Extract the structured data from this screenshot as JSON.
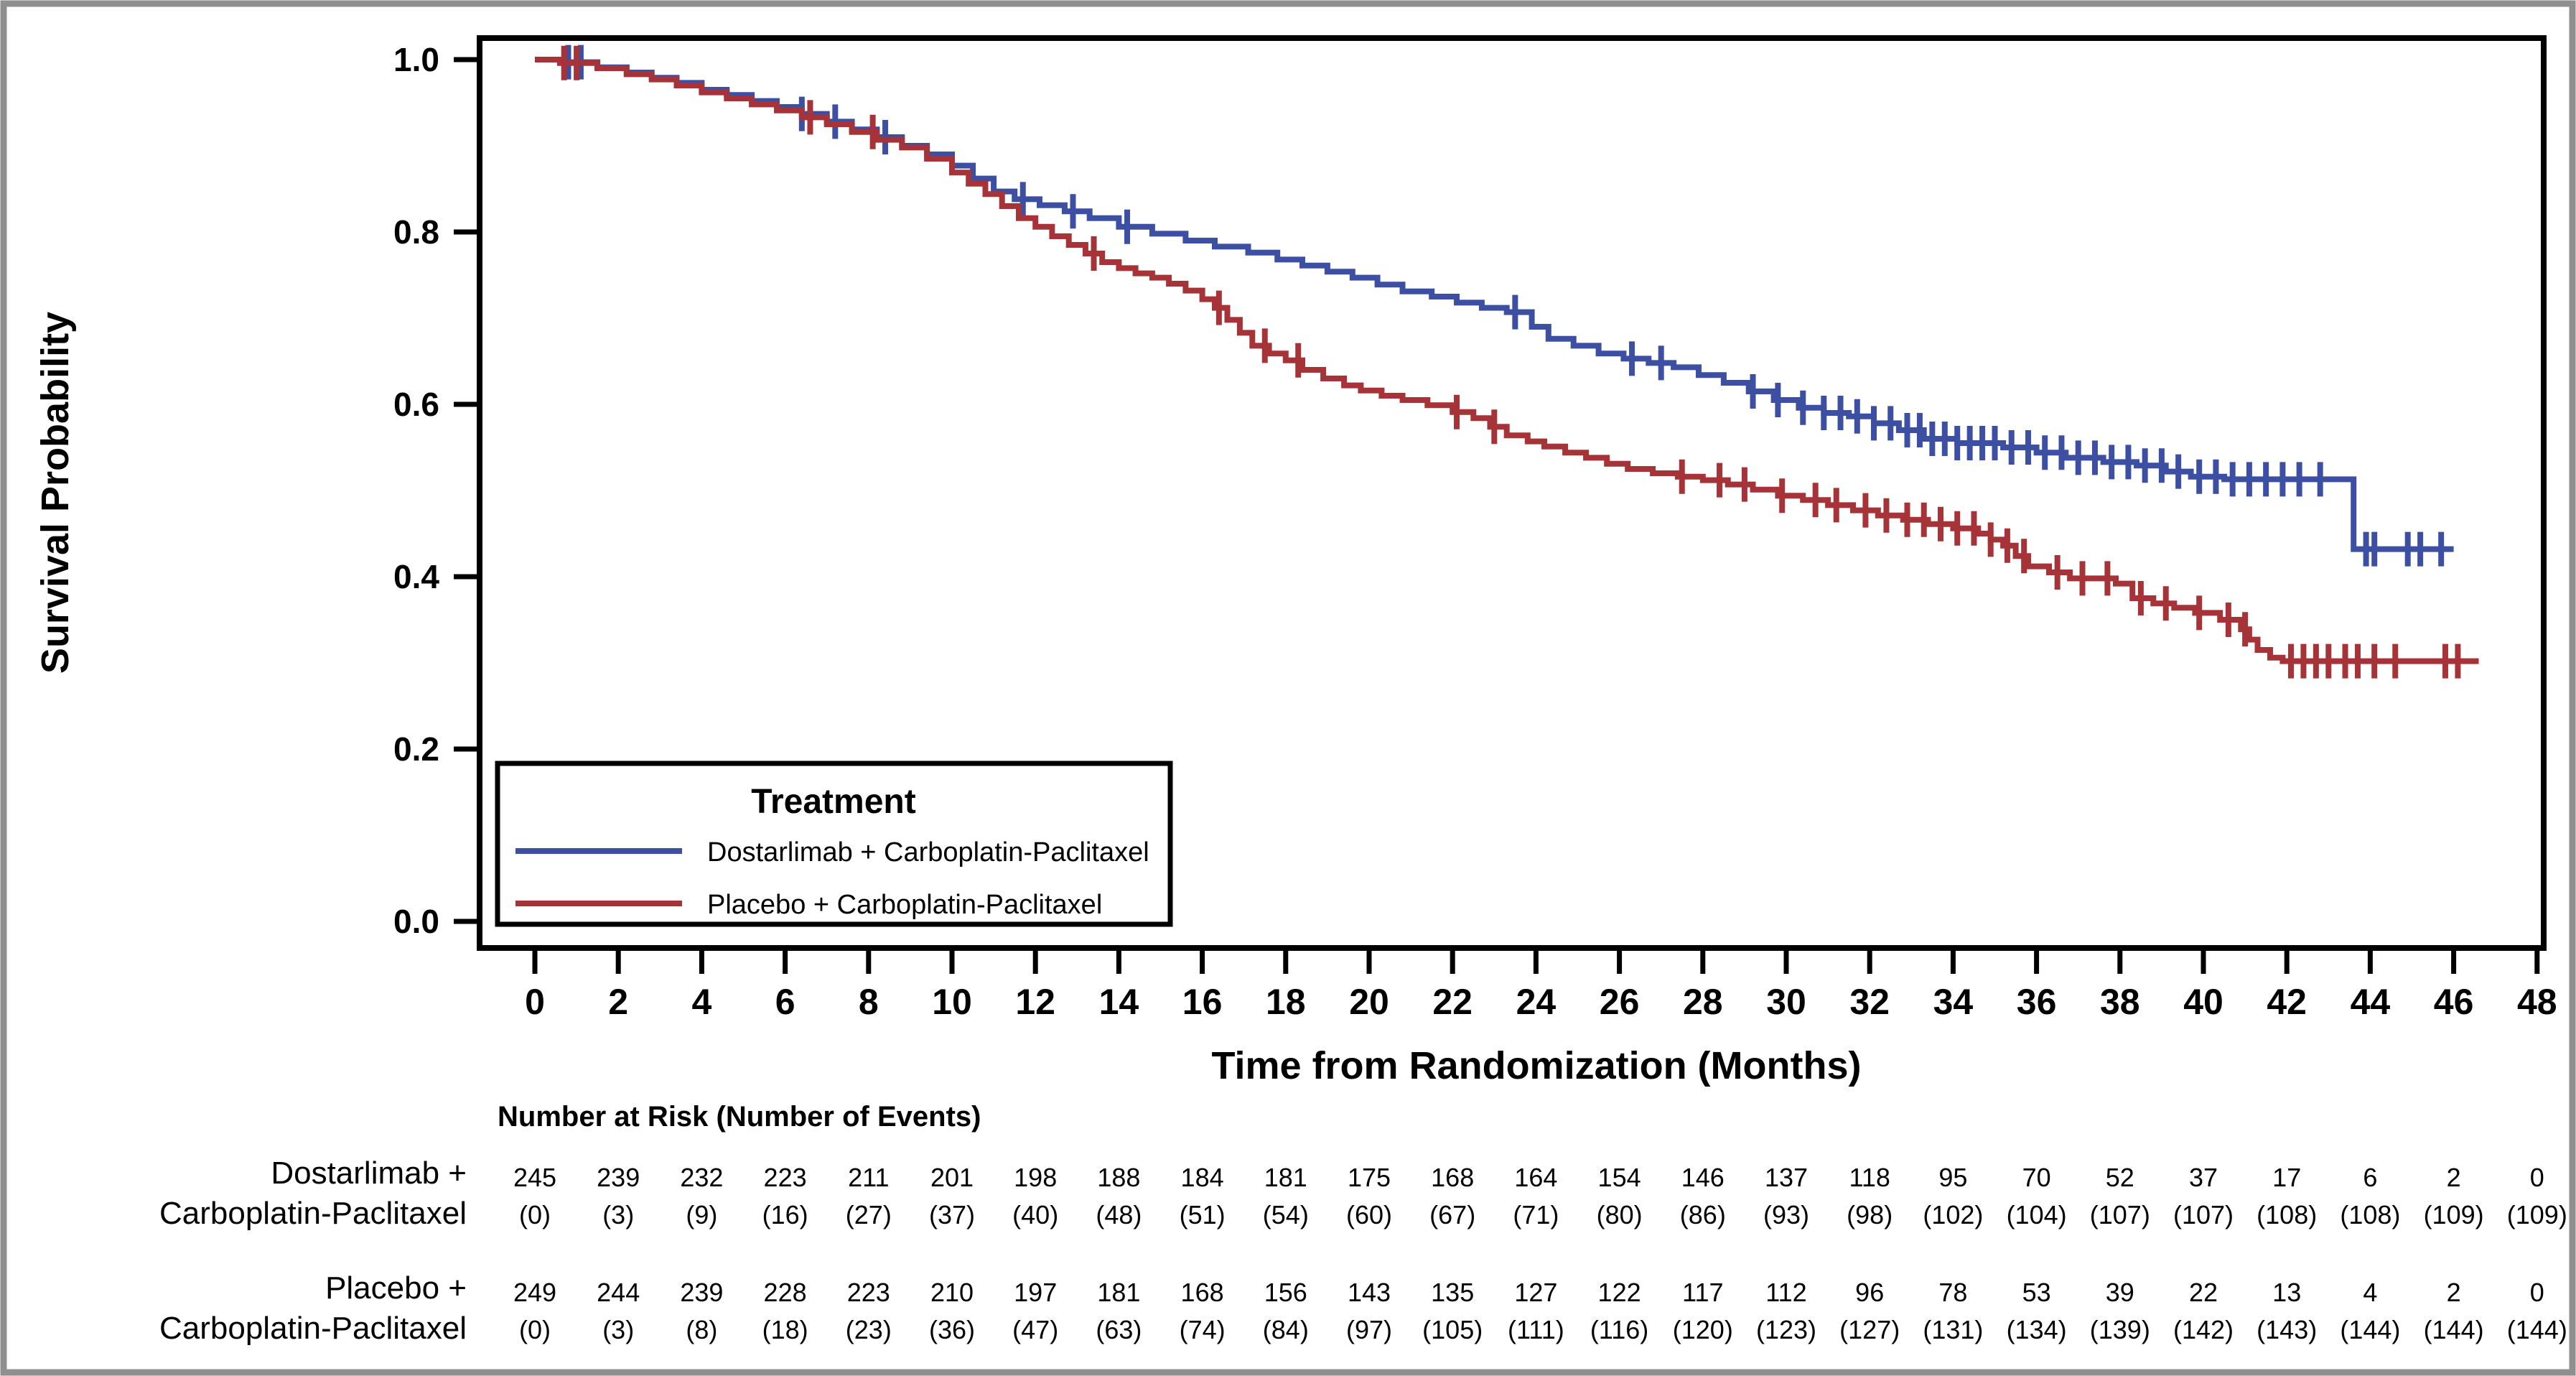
{
  "figure": {
    "background": "#ffffff",
    "border_color": "#8f8f8f",
    "frame_color": "#000000"
  },
  "chart_data": {
    "type": "line",
    "subtype": "kaplan-meier-step",
    "title": "",
    "xlabel": "Time from Randomization (Months)",
    "ylabel": "Survival Probability",
    "xlim": [
      0,
      48
    ],
    "ylim": [
      0.0,
      1.0
    ],
    "xticks": [
      0,
      2,
      4,
      6,
      8,
      10,
      12,
      14,
      16,
      18,
      20,
      22,
      24,
      26,
      28,
      30,
      32,
      34,
      36,
      38,
      40,
      42,
      44,
      46,
      48
    ],
    "yticks": [
      1.0,
      0.8,
      0.6,
      0.4,
      0.2,
      0.0
    ],
    "grid": false,
    "legend": {
      "title": "Treatment",
      "position": "inside-bottom-left"
    },
    "series": [
      {
        "name": "Dostarlimab + Carboplatin-Paclitaxel",
        "color": "#3d4fa2",
        "points": [
          [
            0,
            1
          ],
          [
            0.6,
            0.997
          ],
          [
            1.5,
            0.991
          ],
          [
            2.2,
            0.985
          ],
          [
            2.8,
            0.979
          ],
          [
            3.4,
            0.973
          ],
          [
            4,
            0.965
          ],
          [
            4.6,
            0.959
          ],
          [
            5.2,
            0.952
          ],
          [
            5.8,
            0.945
          ],
          [
            6.4,
            0.937
          ],
          [
            7,
            0.928
          ],
          [
            7.6,
            0.919
          ],
          [
            8.2,
            0.91
          ],
          [
            8.8,
            0.9
          ],
          [
            9.4,
            0.89
          ],
          [
            10,
            0.877
          ],
          [
            10.5,
            0.862
          ],
          [
            11,
            0.847
          ],
          [
            11.5,
            0.838
          ],
          [
            12.1,
            0.831
          ],
          [
            12.7,
            0.824
          ],
          [
            13.3,
            0.816
          ],
          [
            14,
            0.806
          ],
          [
            14.8,
            0.798
          ],
          [
            15.6,
            0.79
          ],
          [
            16.3,
            0.783
          ],
          [
            17.1,
            0.776
          ],
          [
            17.8,
            0.768
          ],
          [
            18.4,
            0.761
          ],
          [
            19,
            0.754
          ],
          [
            19.6,
            0.747
          ],
          [
            20.2,
            0.739
          ],
          [
            20.8,
            0.731
          ],
          [
            21.5,
            0.725
          ],
          [
            22.1,
            0.718
          ],
          [
            22.7,
            0.712
          ],
          [
            23.3,
            0.707
          ],
          [
            23.9,
            0.69
          ],
          [
            24.3,
            0.676
          ],
          [
            24.9,
            0.668
          ],
          [
            25.5,
            0.659
          ],
          [
            26.1,
            0.653
          ],
          [
            26.7,
            0.648
          ],
          [
            27.3,
            0.643
          ],
          [
            27.9,
            0.634
          ],
          [
            28.5,
            0.625
          ],
          [
            29.1,
            0.615
          ],
          [
            29.7,
            0.605
          ],
          [
            30.3,
            0.596
          ],
          [
            30.9,
            0.59
          ],
          [
            31.5,
            0.586
          ],
          [
            32.1,
            0.578
          ],
          [
            32.7,
            0.57
          ],
          [
            33.3,
            0.56
          ],
          [
            34.1,
            0.555
          ],
          [
            35.2,
            0.55
          ],
          [
            36,
            0.544
          ],
          [
            36.7,
            0.538
          ],
          [
            37.6,
            0.533
          ],
          [
            38.4,
            0.529
          ],
          [
            39.1,
            0.522
          ],
          [
            39.7,
            0.516
          ],
          [
            40.5,
            0.513
          ],
          [
            43.6,
            0.432
          ],
          [
            46,
            0.432
          ]
        ],
        "censor_times": [
          0.8,
          1.1,
          6.4,
          7.2,
          8.4,
          11.7,
          12.9,
          14.2,
          23.5,
          26.3,
          27,
          29.2,
          29.8,
          30.4,
          30.9,
          31.3,
          31.7,
          32.1,
          32.5,
          32.9,
          33.2,
          33.5,
          33.8,
          34.1,
          34.4,
          34.7,
          35,
          35.4,
          35.8,
          36.2,
          36.6,
          37,
          37.4,
          37.8,
          38.2,
          38.6,
          39,
          39.4,
          39.9,
          40.3,
          40.7,
          41.1,
          41.5,
          41.9,
          42.3,
          42.8,
          43.9,
          44.1,
          44.9,
          45.2,
          45.7
        ]
      },
      {
        "name": "Placebo + Carboplatin-Paclitaxel",
        "color": "#a63338",
        "points": [
          [
            0,
            1
          ],
          [
            0.6,
            0.996
          ],
          [
            1.5,
            0.99
          ],
          [
            2.2,
            0.983
          ],
          [
            2.8,
            0.977
          ],
          [
            3.4,
            0.97
          ],
          [
            4,
            0.962
          ],
          [
            4.6,
            0.955
          ],
          [
            5.2,
            0.948
          ],
          [
            5.8,
            0.941
          ],
          [
            6.4,
            0.933
          ],
          [
            7,
            0.925
          ],
          [
            7.6,
            0.916
          ],
          [
            8.2,
            0.907
          ],
          [
            8.8,
            0.898
          ],
          [
            9.4,
            0.885
          ],
          [
            10,
            0.869
          ],
          [
            10.4,
            0.856
          ],
          [
            10.8,
            0.844
          ],
          [
            11.2,
            0.83
          ],
          [
            11.6,
            0.816
          ],
          [
            12,
            0.806
          ],
          [
            12.4,
            0.795
          ],
          [
            12.8,
            0.785
          ],
          [
            13.2,
            0.775
          ],
          [
            13.6,
            0.765
          ],
          [
            14,
            0.758
          ],
          [
            14.4,
            0.752
          ],
          [
            14.8,
            0.747
          ],
          [
            15.2,
            0.74
          ],
          [
            15.6,
            0.732
          ],
          [
            16,
            0.722
          ],
          [
            16.3,
            0.712
          ],
          [
            16.6,
            0.698
          ],
          [
            16.9,
            0.683
          ],
          [
            17.2,
            0.668
          ],
          [
            17.6,
            0.659
          ],
          [
            18,
            0.651
          ],
          [
            18.4,
            0.64
          ],
          [
            18.9,
            0.63
          ],
          [
            19.4,
            0.622
          ],
          [
            19.8,
            0.616
          ],
          [
            20.3,
            0.61
          ],
          [
            20.8,
            0.605
          ],
          [
            21.4,
            0.599
          ],
          [
            22,
            0.591
          ],
          [
            22.5,
            0.584
          ],
          [
            22.9,
            0.574
          ],
          [
            23.3,
            0.564
          ],
          [
            23.8,
            0.557
          ],
          [
            24.2,
            0.551
          ],
          [
            24.7,
            0.544
          ],
          [
            25.2,
            0.538
          ],
          [
            25.7,
            0.531
          ],
          [
            26.2,
            0.525
          ],
          [
            26.8,
            0.52
          ],
          [
            27.4,
            0.516
          ],
          [
            28,
            0.512
          ],
          [
            28.6,
            0.507
          ],
          [
            29.2,
            0.501
          ],
          [
            29.8,
            0.494
          ],
          [
            30.4,
            0.489
          ],
          [
            31,
            0.483
          ],
          [
            31.6,
            0.477
          ],
          [
            32.2,
            0.471
          ],
          [
            32.8,
            0.466
          ],
          [
            33.4,
            0.461
          ],
          [
            34,
            0.456
          ],
          [
            34.6,
            0.45
          ],
          [
            34.9,
            0.443
          ],
          [
            35.2,
            0.436
          ],
          [
            35.5,
            0.424
          ],
          [
            35.8,
            0.412
          ],
          [
            36.3,
            0.405
          ],
          [
            36.8,
            0.398
          ],
          [
            37.9,
            0.392
          ],
          [
            38.3,
            0.375
          ],
          [
            38.8,
            0.369
          ],
          [
            39.3,
            0.364
          ],
          [
            39.8,
            0.358
          ],
          [
            40.4,
            0.35
          ],
          [
            40.9,
            0.339
          ],
          [
            41.1,
            0.327
          ],
          [
            41.3,
            0.315
          ],
          [
            41.6,
            0.306
          ],
          [
            41.9,
            0.302
          ],
          [
            46.6,
            0.302
          ]
        ],
        "censor_times": [
          0.7,
          1,
          6.6,
          8.1,
          13.4,
          16.4,
          17.5,
          18.3,
          22.1,
          23,
          27.5,
          28.4,
          29,
          29.9,
          30.7,
          31.2,
          31.9,
          32.4,
          32.9,
          33.3,
          33.7,
          34.1,
          34.5,
          34.9,
          35.3,
          35.7,
          36.5,
          37.1,
          37.7,
          38.5,
          39.1,
          39.9,
          40.6,
          41,
          42.1,
          42.4,
          42.7,
          43,
          43.4,
          43.7,
          44.1,
          44.6,
          45.8,
          46.1
        ]
      }
    ],
    "risk_table": {
      "header": "Number at Risk (Number of Events)",
      "months": [
        0,
        2,
        4,
        6,
        8,
        10,
        12,
        14,
        16,
        18,
        20,
        22,
        24,
        26,
        28,
        30,
        32,
        34,
        36,
        38,
        40,
        42,
        44,
        46,
        48
      ],
      "rows": [
        {
          "label_line1": "Dostarlimab +",
          "label_line2": "Carboplatin-Paclitaxel",
          "at_risk": [
            245,
            239,
            232,
            223,
            211,
            201,
            198,
            188,
            184,
            181,
            175,
            168,
            164,
            154,
            146,
            137,
            118,
            95,
            70,
            52,
            37,
            17,
            6,
            2,
            0
          ],
          "events": [
            0,
            3,
            9,
            16,
            27,
            37,
            40,
            48,
            51,
            54,
            60,
            67,
            71,
            80,
            86,
            93,
            98,
            102,
            104,
            107,
            107,
            108,
            108,
            109,
            109
          ]
        },
        {
          "label_line1": "Placebo +",
          "label_line2": "Carboplatin-Paclitaxel",
          "at_risk": [
            249,
            244,
            239,
            228,
            223,
            210,
            197,
            181,
            168,
            156,
            143,
            135,
            127,
            122,
            117,
            112,
            96,
            78,
            53,
            39,
            22,
            13,
            4,
            2,
            0
          ],
          "events": [
            0,
            3,
            8,
            18,
            23,
            36,
            47,
            63,
            74,
            84,
            97,
            105,
            111,
            116,
            120,
            123,
            127,
            131,
            134,
            139,
            142,
            143,
            144,
            144,
            144
          ]
        }
      ]
    }
  }
}
